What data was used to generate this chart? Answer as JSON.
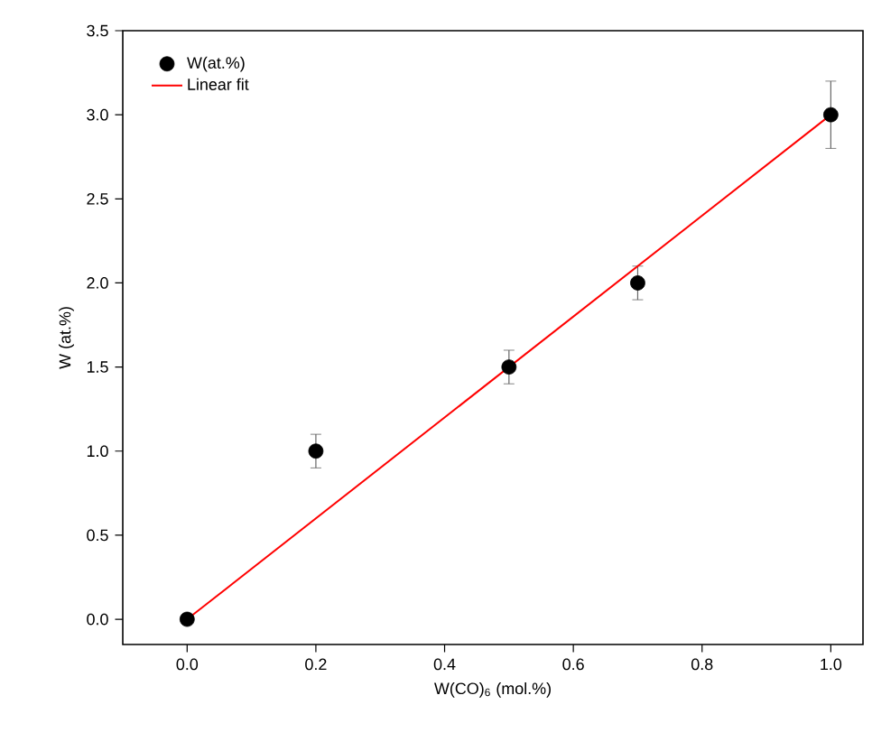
{
  "chart_data": {
    "type": "scatter",
    "xlabel": "W(CO)$_{6}$ (mol.%)",
    "ylabel": "W (at.%)",
    "xlim": [
      -0.1,
      1.05
    ],
    "ylim": [
      -0.15,
      3.5
    ],
    "xticks": [
      {
        "value": 0,
        "label": "0.0"
      },
      {
        "value": 0.2,
        "label": "0.2"
      },
      {
        "value": 0.4,
        "label": "0.4"
      },
      {
        "value": 0.6,
        "label": "0.6"
      },
      {
        "value": 0.8,
        "label": "0.8"
      },
      {
        "value": 1,
        "label": "1.0"
      }
    ],
    "yticks": [
      {
        "value": 0,
        "label": "0.0"
      },
      0.5,
      {
        "value": 1,
        "label": "1.0"
      },
      1.5,
      {
        "value": 2,
        "label": "2.0"
      },
      2.5,
      {
        "value": 3,
        "label": "3.0"
      },
      3.5
    ],
    "legend": "top left",
    "series": [
      {
        "name": "W(at.%)",
        "color": "#000000",
        "x": [
          0,
          0.2,
          0.5,
          0.7,
          1.0
        ],
        "values": [
          0,
          1.0,
          1.5,
          2.0,
          3.0
        ],
        "errors": [
          null,
          0.1,
          0.1,
          0.1,
          0.2
        ]
      },
      {
        "name": "Linear fit",
        "type": "line",
        "color": "#ff0000",
        "x": [
          0,
          1.0
        ],
        "values": [
          0,
          3.0
        ]
      }
    ]
  }
}
